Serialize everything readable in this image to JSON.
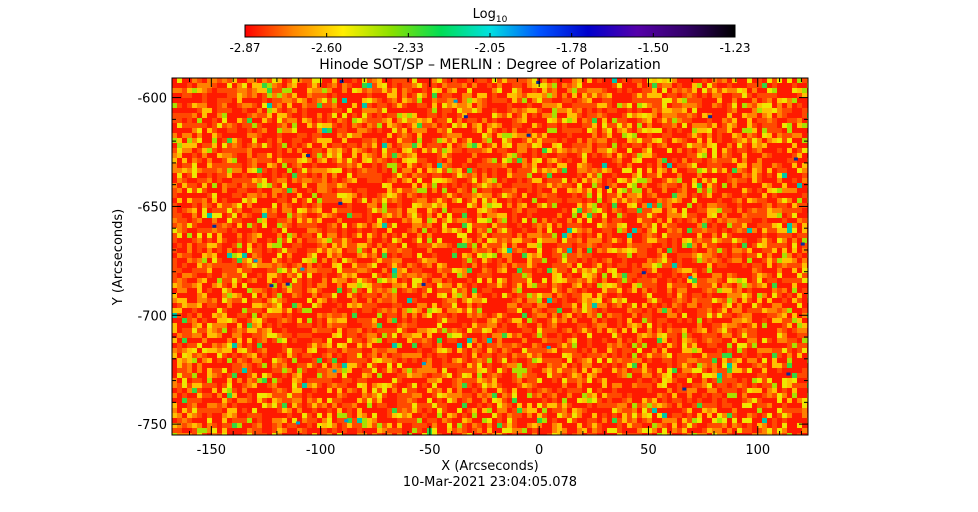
{
  "chart_data": {
    "type": "heatmap",
    "title": "Hinode SOT/SP – MERLIN : Degree of Polarization",
    "colorbar": {
      "label_base": "Log",
      "label_sub": "10",
      "min": -2.87,
      "max": -1.23,
      "tick_labels": [
        "-2.87",
        "-2.60",
        "-2.33",
        "-2.05",
        "-1.78",
        "-1.50",
        "-1.23"
      ],
      "colormap": "rainbow (red to black)",
      "colors": [
        "#ff0000",
        "#ff8800",
        "#ffee00",
        "#88e000",
        "#00dd55",
        "#00e0e0",
        "#0055ff",
        "#0000cc",
        "#5500aa",
        "#330066",
        "#000000"
      ]
    },
    "xlabel": "X (Arcseconds)",
    "ylabel": "Y (Arcseconds)",
    "xlim": [
      -168,
      123
    ],
    "ylim": [
      -755,
      -591
    ],
    "x_ticks": [
      -150,
      -100,
      -50,
      0,
      50,
      100
    ],
    "y_ticks": [
      -600,
      -650,
      -700,
      -750
    ],
    "x_tick_labels": [
      "-150",
      "-100",
      "-50",
      "0",
      "50",
      "100"
    ],
    "y_tick_labels": [
      "-600",
      "-650",
      "-700",
      "-750"
    ],
    "field_description": "mostly low values (red/orange) with scattered yellow-green and rare blue/cyan points",
    "timestamp": "10-Mar-2021 23:04:05.078"
  }
}
